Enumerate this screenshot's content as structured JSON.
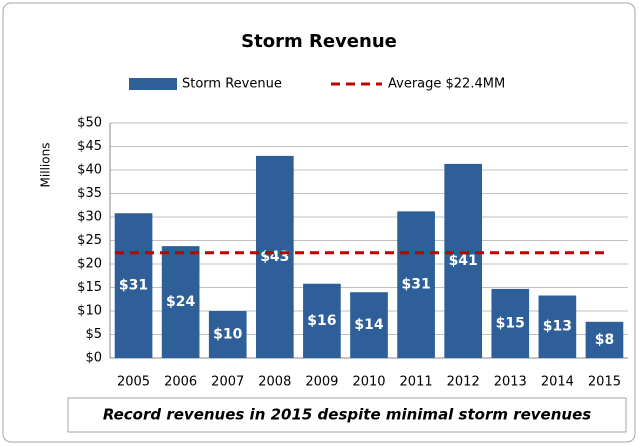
{
  "chart_data": {
    "type": "bar",
    "title": "Storm Revenue",
    "y_axis_label": "Millions",
    "categories": [
      "2005",
      "2006",
      "2007",
      "2008",
      "2009",
      "2010",
      "2011",
      "2012",
      "2013",
      "2014",
      "2015"
    ],
    "series": [
      {
        "name": "Storm Revenue",
        "color": "#2f5f98",
        "values": [
          30.8,
          23.8,
          10,
          43,
          15.8,
          14,
          31.2,
          41.3,
          14.7,
          13.3,
          7.7
        ],
        "value_labels": [
          "$31",
          "$24",
          "$10",
          "$43",
          "$16",
          "$14",
          "$31",
          "$41",
          "$15",
          "$13",
          "$8"
        ]
      }
    ],
    "average": {
      "name": "Average $22.4MM",
      "value": 22.4,
      "color": "#c00000"
    },
    "ylim": [
      0,
      50
    ],
    "yticks": [
      {
        "value": 0,
        "label": "$0"
      },
      {
        "value": 5,
        "label": "$5"
      },
      {
        "value": 10,
        "label": "$10"
      },
      {
        "value": 15,
        "label": "$15"
      },
      {
        "value": 20,
        "label": "$20"
      },
      {
        "value": 25,
        "label": "$25"
      },
      {
        "value": 30,
        "label": "$30"
      },
      {
        "value": 35,
        "label": "$35"
      },
      {
        "value": 40,
        "label": "$40"
      },
      {
        "value": 45,
        "label": "$45"
      },
      {
        "value": 50,
        "label": "$50"
      }
    ],
    "grid": true,
    "legend": "top",
    "annotation": "Record revenues in 2015 despite minimal storm revenues"
  }
}
